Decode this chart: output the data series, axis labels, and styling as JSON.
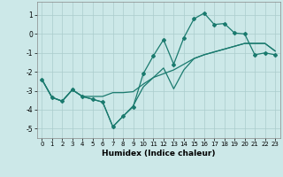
{
  "xlabel": "Humidex (Indice chaleur)",
  "bg_color": "#cce8e8",
  "grid_color": "#aacccc",
  "line_color": "#1a7a6e",
  "xlim": [
    -0.5,
    23.5
  ],
  "ylim": [
    -5.5,
    1.7
  ],
  "yticks": [
    1,
    0,
    -1,
    -2,
    -3,
    -4,
    -5
  ],
  "xticks": [
    0,
    1,
    2,
    3,
    4,
    5,
    6,
    7,
    8,
    9,
    10,
    11,
    12,
    13,
    14,
    15,
    16,
    17,
    18,
    19,
    20,
    21,
    22,
    23
  ],
  "line1_x": [
    0,
    1,
    2,
    3,
    4,
    5,
    6,
    7,
    8,
    9,
    10,
    11,
    12,
    13,
    14,
    15,
    16,
    17,
    18,
    19,
    20,
    21,
    22,
    23
  ],
  "line1_y": [
    -2.4,
    -3.35,
    -3.55,
    -2.95,
    -3.3,
    -3.3,
    -3.3,
    -3.1,
    -3.1,
    -3.05,
    -2.65,
    -2.3,
    -2.1,
    -1.9,
    -1.6,
    -1.3,
    -1.1,
    -0.95,
    -0.8,
    -0.65,
    -0.5,
    -0.5,
    -0.5,
    -0.9
  ],
  "line2_x": [
    0,
    1,
    2,
    3,
    4,
    5,
    6,
    7,
    8,
    9,
    10,
    11,
    12,
    13,
    14,
    15,
    16,
    17,
    18,
    19,
    20,
    21,
    22,
    23
  ],
  "line2_y": [
    -2.4,
    -3.35,
    -3.55,
    -2.95,
    -3.3,
    -3.45,
    -3.6,
    -4.9,
    -4.35,
    -3.8,
    -2.8,
    -2.3,
    -1.8,
    -2.9,
    -1.9,
    -1.3,
    -1.1,
    -0.95,
    -0.8,
    -0.65,
    -0.5,
    -0.5,
    -0.5,
    -0.9
  ],
  "line3_x": [
    0,
    1,
    2,
    3,
    4,
    5,
    6,
    7,
    8,
    9,
    10,
    11,
    12,
    13,
    14,
    15,
    16,
    17,
    18,
    19,
    20,
    21,
    22,
    23
  ],
  "line3_y": [
    -2.4,
    -3.35,
    -3.55,
    -2.95,
    -3.3,
    -3.45,
    -3.6,
    -4.9,
    -4.35,
    -3.85,
    -2.1,
    -1.15,
    -0.3,
    -1.6,
    -0.2,
    0.8,
    1.1,
    0.5,
    0.55,
    0.05,
    0.0,
    -1.1,
    -1.0,
    -1.1
  ],
  "marker_x": [
    1,
    2,
    3,
    4,
    5,
    6,
    7,
    8,
    9,
    10,
    11,
    12,
    13,
    14,
    15,
    16,
    17,
    18,
    19,
    20,
    21,
    22,
    23
  ],
  "marker_y": [
    -3.35,
    -3.55,
    -2.95,
    -3.3,
    -3.45,
    -3.6,
    -4.9,
    -4.35,
    -3.85,
    -2.1,
    -1.15,
    -0.3,
    -1.6,
    -0.2,
    0.8,
    1.1,
    0.5,
    0.55,
    0.05,
    0.0,
    -1.1,
    -1.0,
    -1.1
  ]
}
